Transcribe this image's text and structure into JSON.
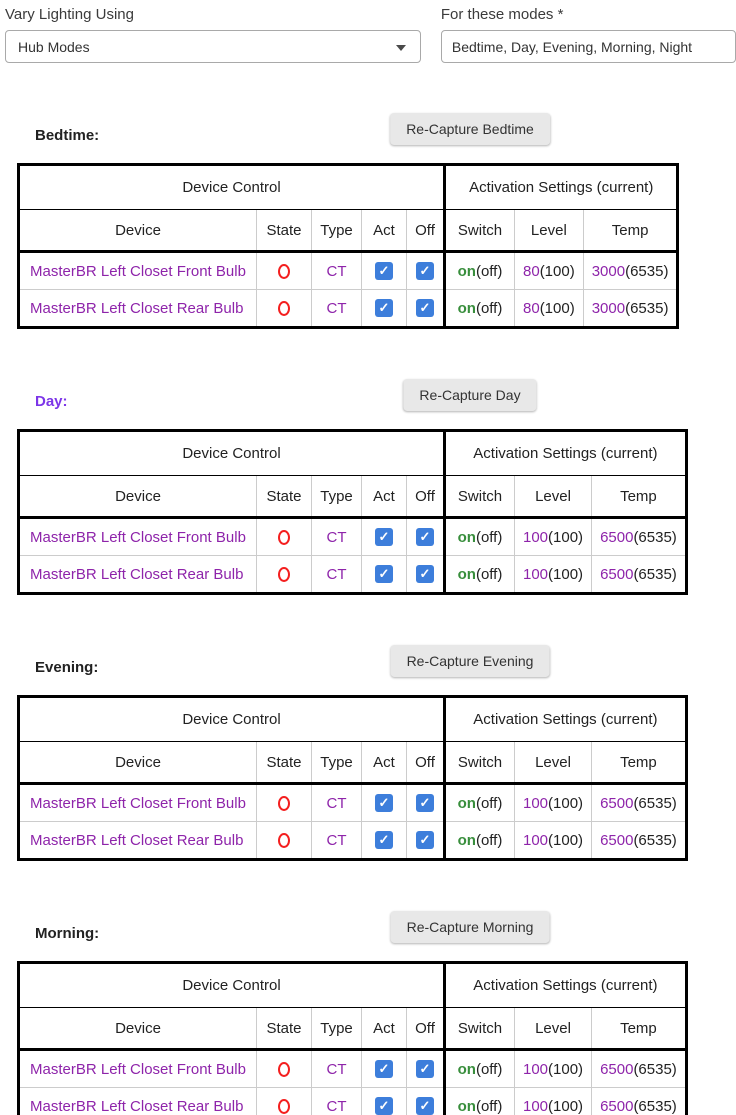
{
  "form": {
    "vary_lighting": {
      "label": "Vary Lighting Using",
      "value": "Hub Modes"
    },
    "modes_field": {
      "label": "For these modes *",
      "value": "Bedtime, Day, Evening, Morning, Night"
    }
  },
  "icons": {
    "dropdown_arrow": "caret-down",
    "state_off": "red-circle-outline",
    "checkbox_checked": "white-check"
  },
  "table": {
    "group_left": "Device Control",
    "group_right": "Activation Settings (current)",
    "columns": [
      "Device",
      "State",
      "Type",
      "Act",
      "Off",
      "Switch",
      "Level",
      "Temp"
    ]
  },
  "sections": [
    {
      "mode": "Bedtime",
      "label": "Bedtime:",
      "button": "Re-Capture Bedtime",
      "active": false,
      "rows": [
        {
          "device": "MasterBR Left Closet Front Bulb",
          "type": "CT",
          "act": true,
          "off": true,
          "switch_on": "on",
          "switch_off": "(off)",
          "level": "80",
          "level_current": "(100)",
          "temp": "3000",
          "temp_current": "(6535)"
        },
        {
          "device": "MasterBR Left Closet Rear Bulb",
          "type": "CT",
          "act": true,
          "off": true,
          "switch_on": "on",
          "switch_off": "(off)",
          "level": "80",
          "level_current": "(100)",
          "temp": "3000",
          "temp_current": "(6535)"
        }
      ]
    },
    {
      "mode": "Day",
      "label": "Day:",
      "button": "Re-Capture Day",
      "active": true,
      "rows": [
        {
          "device": "MasterBR Left Closet Front Bulb",
          "type": "CT",
          "act": true,
          "off": true,
          "switch_on": "on",
          "switch_off": "(off)",
          "level": "100",
          "level_current": "(100)",
          "temp": "6500",
          "temp_current": "(6535)"
        },
        {
          "device": "MasterBR Left Closet Rear Bulb",
          "type": "CT",
          "act": true,
          "off": true,
          "switch_on": "on",
          "switch_off": "(off)",
          "level": "100",
          "level_current": "(100)",
          "temp": "6500",
          "temp_current": "(6535)"
        }
      ]
    },
    {
      "mode": "Evening",
      "label": "Evening:",
      "button": "Re-Capture Evening",
      "active": false,
      "rows": [
        {
          "device": "MasterBR Left Closet Front Bulb",
          "type": "CT",
          "act": true,
          "off": true,
          "switch_on": "on",
          "switch_off": "(off)",
          "level": "100",
          "level_current": "(100)",
          "temp": "6500",
          "temp_current": "(6535)"
        },
        {
          "device": "MasterBR Left Closet Rear Bulb",
          "type": "CT",
          "act": true,
          "off": true,
          "switch_on": "on",
          "switch_off": "(off)",
          "level": "100",
          "level_current": "(100)",
          "temp": "6500",
          "temp_current": "(6535)"
        }
      ]
    },
    {
      "mode": "Morning",
      "label": "Morning:",
      "button": "Re-Capture Morning",
      "active": false,
      "rows": [
        {
          "device": "MasterBR Left Closet Front Bulb",
          "type": "CT",
          "act": true,
          "off": true,
          "switch_on": "on",
          "switch_off": "(off)",
          "level": "100",
          "level_current": "(100)",
          "temp": "6500",
          "temp_current": "(6535)"
        },
        {
          "device": "MasterBR Left Closet Rear Bulb",
          "type": "CT",
          "act": true,
          "off": true,
          "switch_on": "on",
          "switch_off": "(off)",
          "level": "100",
          "level_current": "(100)",
          "temp": "6500",
          "temp_current": "(6535)"
        }
      ]
    }
  ],
  "colors": {
    "device_link": "#8e24aa",
    "active_mode": "#7c35e8",
    "switch_on_green": "#388e3c",
    "state_red": "#f41f1f",
    "checkbox_blue": "#3d7edb",
    "table_border": "#000000",
    "inner_border": "#cccccc"
  }
}
